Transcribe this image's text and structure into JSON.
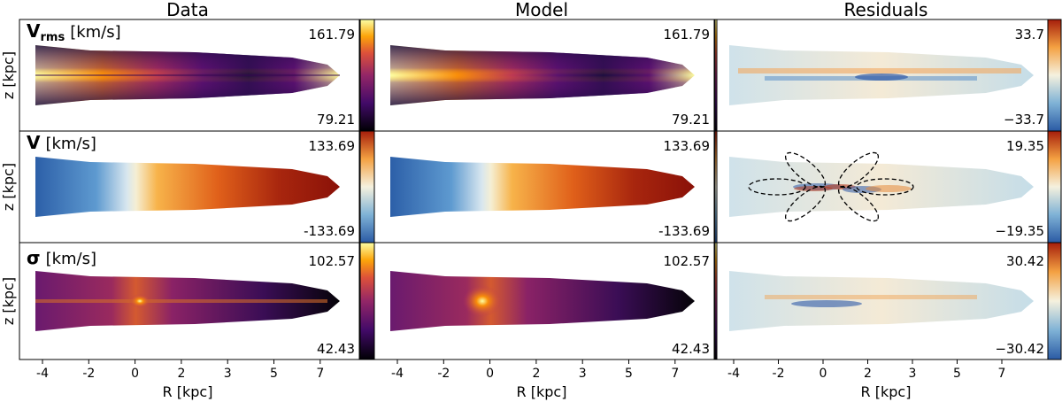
{
  "chart_data": {
    "type": "heatmap",
    "layout": "3x3 grid of galaxy kinematic maps",
    "column_titles": [
      "Data",
      "Model",
      "Residuals"
    ],
    "rows": [
      {
        "key": "vrms",
        "label_symbol": "V",
        "label_subscript": "rms",
        "label_unit": "[km/s]",
        "data_range": [
          "161.79",
          "79.21"
        ],
        "model_range": [
          "161.79",
          "79.21"
        ],
        "residual_range": [
          "33.7",
          "−33.7"
        ],
        "colormap": "inferno"
      },
      {
        "key": "v",
        "label_symbol": "V",
        "label_subscript": "",
        "label_unit": "[km/s]",
        "data_range": [
          "133.69",
          "-133.69"
        ],
        "model_range": [
          "133.69",
          "-133.69"
        ],
        "residual_range": [
          "19.35",
          "−19.35"
        ],
        "colormap": "diverging blue-white-red",
        "residual_annotation": "dashed ellipses marking residual lobes"
      },
      {
        "key": "sigma",
        "label_symbol": "σ",
        "label_subscript": "",
        "label_unit": "[km/s]",
        "data_range": [
          "102.57",
          "42.43"
        ],
        "model_range": [
          "102.57",
          "42.43"
        ],
        "residual_range": [
          "30.42",
          "−30.42"
        ],
        "colormap": "inferno"
      }
    ],
    "xlabel": "R [kpc]",
    "ylabel": "z [kpc]",
    "xticks": [
      "-4",
      "-2",
      "0",
      "2",
      "3",
      "5",
      "7"
    ]
  }
}
